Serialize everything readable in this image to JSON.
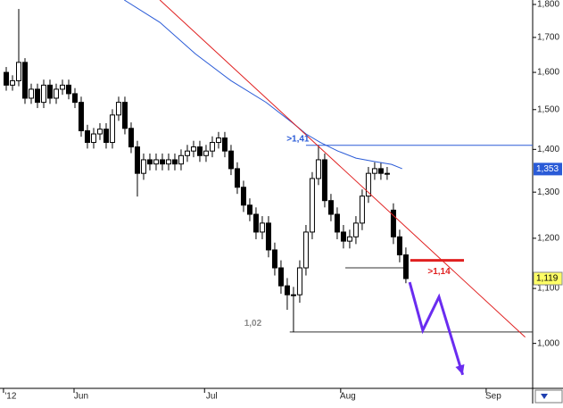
{
  "chart_data": {
    "type": "candlestick",
    "log_scale": true,
    "xlim": [
      -1,
      84.3
    ],
    "ylim": [
      925,
      1814
    ],
    "yticks": [
      {
        "value": 1000,
        "label": "1,000"
      },
      {
        "value": 1100,
        "label": "1,100"
      },
      {
        "value": 1200,
        "label": "1,200"
      },
      {
        "value": 1300,
        "label": "1,300"
      },
      {
        "value": 1400,
        "label": "1,400"
      },
      {
        "value": 1500,
        "label": "1,500"
      },
      {
        "value": 1600,
        "label": "1,600"
      },
      {
        "value": 1700,
        "label": "1,700"
      },
      {
        "value": 1800,
        "label": "1,800"
      }
    ],
    "xticks": [
      {
        "value": 0.7,
        "label": "'12"
      },
      {
        "value": 12,
        "label": "Jun"
      },
      {
        "value": 32.9,
        "label": "Jul"
      },
      {
        "value": 54.7,
        "label": "Aug"
      },
      {
        "value": 78,
        "label": "Sep"
      }
    ],
    "candles": {
      "color": "#000000",
      "open": [
        1600,
        1565,
        1577,
        1628,
        1530,
        1554,
        1519,
        1565,
        1530,
        1554,
        1565,
        1542,
        1519,
        1446,
        1417,
        1438,
        1450,
        1417,
        1486,
        1519,
        1452,
        1406,
        1343,
        1375,
        1365,
        1375,
        1365,
        1375,
        1365,
        1385,
        1396,
        1406,
        1385,
        1396,
        1417,
        1428,
        1396,
        1354,
        1311,
        1271,
        1251,
        1213,
        1232,
        1176,
        1140,
        1105,
        1088,
        1088,
        1140,
        1213,
        1331,
        1375,
        1281,
        1251,
        1213,
        1194,
        1203,
        1232,
        1291,
        1343,
        1354,
        1343,
        1260,
        1203,
        1166
      ],
      "high": [
        1615,
        1592,
        1786,
        1640,
        1569,
        1569,
        1580,
        1580,
        1569,
        1580,
        1580,
        1557,
        1534,
        1461,
        1453,
        1465,
        1465,
        1501,
        1534,
        1534,
        1467,
        1421,
        1390,
        1390,
        1390,
        1390,
        1390,
        1390,
        1400,
        1411,
        1421,
        1421,
        1411,
        1432,
        1443,
        1443,
        1411,
        1369,
        1326,
        1286,
        1266,
        1247,
        1247,
        1191,
        1155,
        1120,
        1103,
        1155,
        1228,
        1346,
        1410,
        1390,
        1296,
        1266,
        1228,
        1218,
        1247,
        1306,
        1358,
        1369,
        1369,
        1358,
        1275,
        1218,
        1181
      ],
      "low": [
        1550,
        1550,
        1562,
        1515,
        1515,
        1504,
        1504,
        1515,
        1515,
        1539,
        1527,
        1504,
        1431,
        1402,
        1402,
        1423,
        1402,
        1402,
        1471,
        1437,
        1391,
        1290,
        1328,
        1350,
        1350,
        1350,
        1350,
        1350,
        1350,
        1370,
        1381,
        1370,
        1370,
        1381,
        1402,
        1381,
        1339,
        1296,
        1256,
        1236,
        1198,
        1198,
        1161,
        1125,
        1090,
        1060,
        1020,
        1073,
        1125,
        1198,
        1316,
        1266,
        1236,
        1198,
        1179,
        1179,
        1188,
        1217,
        1276,
        1328,
        1328,
        1328,
        1188,
        1151,
        1110
      ],
      "close": [
        1565,
        1577,
        1628,
        1530,
        1554,
        1519,
        1565,
        1530,
        1554,
        1565,
        1542,
        1519,
        1446,
        1417,
        1438,
        1450,
        1417,
        1486,
        1519,
        1452,
        1406,
        1343,
        1375,
        1365,
        1375,
        1365,
        1375,
        1365,
        1385,
        1396,
        1406,
        1385,
        1396,
        1417,
        1428,
        1396,
        1354,
        1311,
        1271,
        1251,
        1213,
        1232,
        1176,
        1140,
        1105,
        1088,
        1088,
        1140,
        1213,
        1331,
        1375,
        1281,
        1251,
        1213,
        1194,
        1203,
        1232,
        1291,
        1343,
        1354,
        1343,
        1343,
        1203,
        1166,
        1119
      ],
      "last_label": {
        "value": 1119,
        "label": "1,119"
      }
    },
    "lines": [
      {
        "color": "#2a5bd7",
        "x": [
          18.9,
          24.6,
          30.3,
          36,
          41.6,
          46,
          48,
          50.3,
          53.1,
          56,
          58.9,
          61.7,
          63.4
        ],
        "values": [
          1814,
          1745,
          1652,
          1577,
          1519,
          1464,
          1438,
          1417,
          1396,
          1379,
          1371,
          1364,
          1354
        ],
        "last_label": {
          "value": 1353,
          "label": "1,353"
        }
      },
      {
        "color": "#e02020",
        "x": [
          24.6,
          83.1
        ],
        "values": [
          1814,
          1011
        ]
      },
      {
        "color": "#6a2cf0",
        "x": [
          64.6,
          66.7,
          69.3,
          73.1
        ],
        "values": [
          1112,
          1023,
          1084,
          947
        ]
      }
    ],
    "levels": [
      {
        "value": 1410,
        "from": 48,
        "to": 84.3,
        "color": "#2a5bd7"
      },
      {
        "value": 1140,
        "from": 54.3,
        "to": 64,
        "color": "#333333"
      },
      {
        "value": 1020,
        "from": 45.4,
        "to": 84.3,
        "color": "#333333"
      },
      {
        "value": 1155,
        "from": 64.7,
        "to": 73.3,
        "color": "#e02020"
      }
    ],
    "annotations": [
      {
        "text": ">1,41",
        "x": 46.7,
        "y": 1425,
        "color": "#2a5bd7"
      },
      {
        "text": ">1,14",
        "x": 69.3,
        "y": 1132,
        "color": "#e02020"
      },
      {
        "text": "1,02",
        "x": 39.5,
        "y": 1035,
        "color": "#888888"
      }
    ]
  }
}
